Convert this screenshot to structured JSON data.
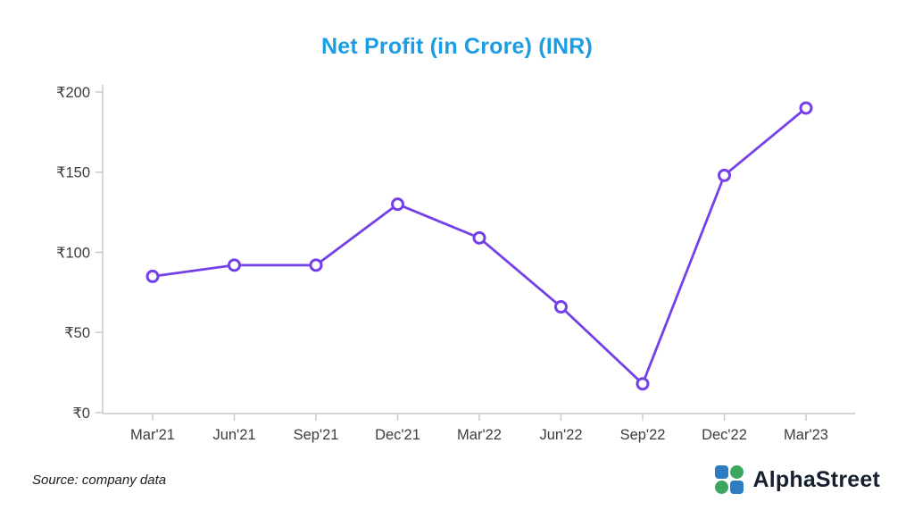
{
  "title": "Net Profit (in Crore) (INR)",
  "source_note": "Source: company data",
  "brand": {
    "name": "AlphaStreet"
  },
  "chart_data": {
    "type": "line",
    "categories": [
      "Mar'21",
      "Jun'21",
      "Sep'21",
      "Dec'21",
      "Mar'22",
      "Jun'22",
      "Sep'22",
      "Dec'22",
      "Mar'23"
    ],
    "values": [
      85,
      92,
      92,
      130,
      109,
      66,
      18,
      148,
      190
    ],
    "title": "Net Profit (in Crore) (INR)",
    "xlabel": "",
    "ylabel": "",
    "ylim": [
      0,
      200
    ],
    "yticks": [
      0,
      50,
      100,
      150,
      200
    ],
    "ytick_labels": [
      "₹0",
      "₹50",
      "₹100",
      "₹150",
      "₹200"
    ],
    "grid": false,
    "legend": "none"
  },
  "colors": {
    "title": "#1b9ce3",
    "axis": "#c8c8c8",
    "tick_text": "#3d3d3d",
    "line": "#7440e8",
    "marker_fill": "#ffffff",
    "brand_text": "#16202e",
    "logo_blue": "#2e7dc0",
    "logo_green": "#3ea55e"
  }
}
